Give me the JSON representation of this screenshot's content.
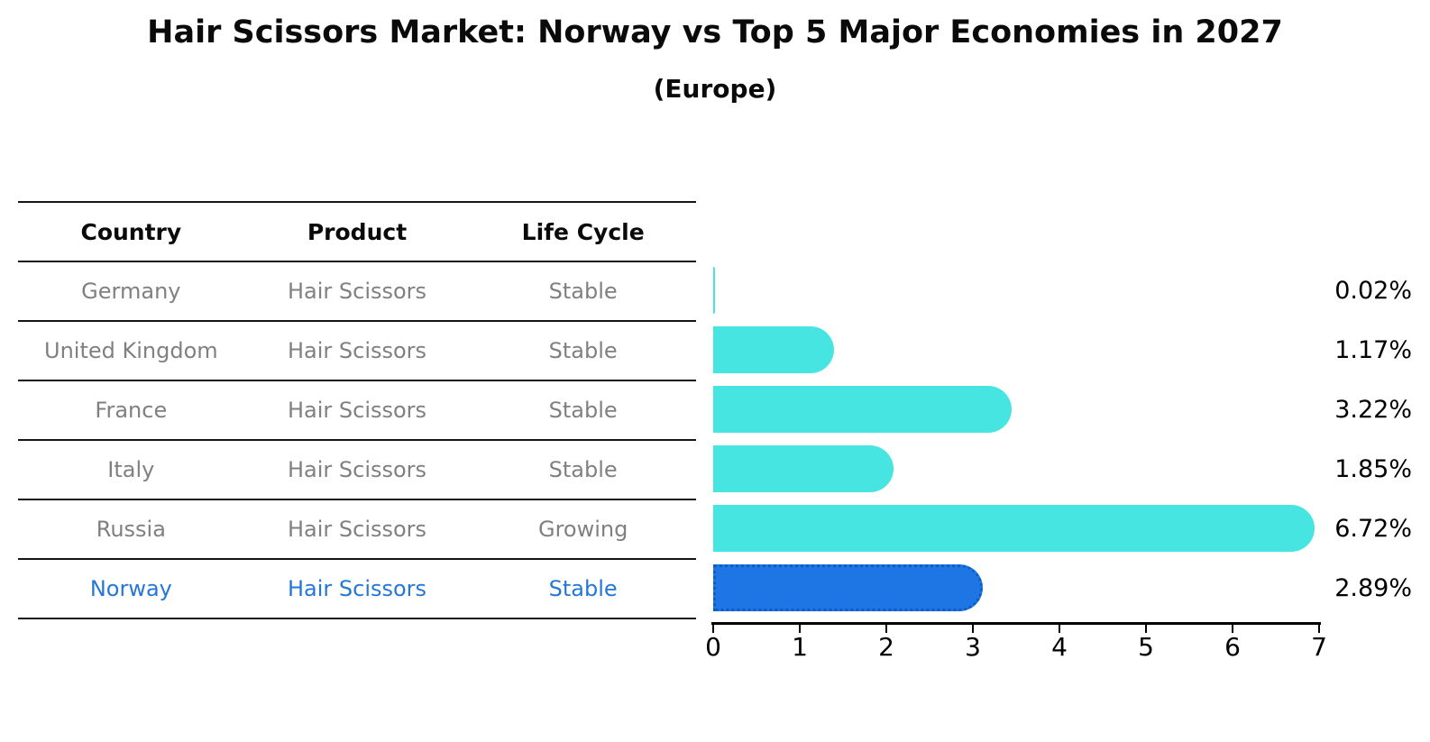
{
  "title": "Hair Scissors Market: Norway vs Top 5 Major Economies in 2027",
  "subtitle": "(Europe)",
  "table": {
    "headers": {
      "country": "Country",
      "product": "Product",
      "life_cycle": "Life Cycle"
    },
    "rows": [
      {
        "country": "Germany",
        "product": "Hair Scissors",
        "life_cycle": "Stable",
        "highlighted": false
      },
      {
        "country": "United Kingdom",
        "product": "Hair Scissors",
        "life_cycle": "Stable",
        "highlighted": false
      },
      {
        "country": "France",
        "product": "Hair Scissors",
        "life_cycle": "Stable",
        "highlighted": false
      },
      {
        "country": "Italy",
        "product": "Hair Scissors",
        "life_cycle": "Stable",
        "highlighted": false
      },
      {
        "country": "Russia",
        "product": "Hair Scissors",
        "life_cycle": "Growing",
        "highlighted": false
      },
      {
        "country": "Norway",
        "product": "Hair Scissors",
        "life_cycle": "Stable",
        "highlighted": true
      }
    ]
  },
  "chart_data": {
    "type": "bar",
    "orientation": "horizontal",
    "title": "Hair Scissors Market: Norway vs Top 5 Major Economies in 2027",
    "subtitle": "(Europe)",
    "categories": [
      "Germany",
      "United Kingdom",
      "France",
      "Italy",
      "Russia",
      "Norway"
    ],
    "values": [
      0.02,
      1.17,
      3.22,
      1.85,
      6.72,
      2.89
    ],
    "value_labels": [
      "0.02%",
      "1.17%",
      "3.22%",
      "1.85%",
      "6.72%",
      "2.89%"
    ],
    "xlim": [
      0,
      7
    ],
    "x_ticks": [
      "0",
      "1",
      "2",
      "3",
      "4",
      "5",
      "6",
      "7"
    ],
    "grid": false,
    "legend": false,
    "highlight_index": 5,
    "colors": {
      "bar": "#46e5e1",
      "highlight_bar": "#1d76e4",
      "highlight_bar_border": "#0f5cc8",
      "axis": "#000000",
      "value_label": "#000000"
    }
  },
  "colors": {
    "background": "#ffffff",
    "row_text": "#808080",
    "highlight_text": "#2577d6",
    "header_text": "#0a0a0a",
    "table_line": "#151515"
  }
}
